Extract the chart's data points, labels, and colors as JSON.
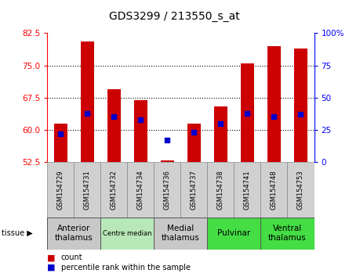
{
  "title": "GDS3299 / 213550_s_at",
  "samples": [
    "GSM154729",
    "GSM154731",
    "GSM154732",
    "GSM154734",
    "GSM154736",
    "GSM154737",
    "GSM154738",
    "GSM154741",
    "GSM154748",
    "GSM154753"
  ],
  "count_values": [
    61.5,
    80.5,
    69.5,
    67.0,
    52.8,
    61.5,
    65.5,
    75.5,
    79.5,
    79.0
  ],
  "percentile_values": [
    22,
    38,
    35,
    33,
    17,
    23,
    30,
    38,
    35,
    37
  ],
  "ylim_left": [
    52.5,
    82.5
  ],
  "ylim_right": [
    0,
    100
  ],
  "yticks_left": [
    52.5,
    60,
    67.5,
    75,
    82.5
  ],
  "yticks_right": [
    0,
    25,
    50,
    75,
    100
  ],
  "bar_color": "#cc0000",
  "dot_color": "#0000cc",
  "bar_base": 52.5,
  "tissue_groups": [
    {
      "label": "Anterior\nthalamus",
      "start": 0,
      "end": 2,
      "color": "#c8c8c8"
    },
    {
      "label": "Centre median",
      "start": 2,
      "end": 4,
      "color": "#b8e8b8"
    },
    {
      "label": "Medial\nthalamus",
      "start": 4,
      "end": 6,
      "color": "#c8c8c8"
    },
    {
      "label": "Pulvinar",
      "start": 6,
      "end": 8,
      "color": "#44dd44"
    },
    {
      "label": "Ventral\nthalamus",
      "start": 8,
      "end": 10,
      "color": "#44dd44"
    }
  ],
  "background_color": "#ffffff",
  "title_fontsize": 10,
  "tick_fontsize": 7.5,
  "bar_width": 0.5,
  "grid_yticks": [
    60,
    67.5,
    75
  ]
}
